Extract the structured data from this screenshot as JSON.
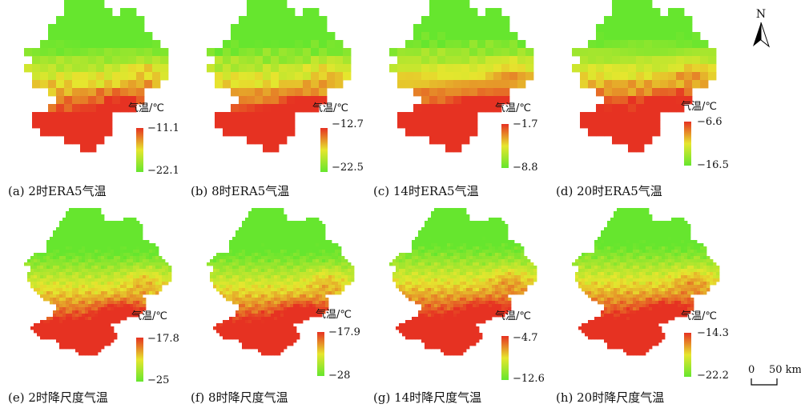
{
  "north_label": "N",
  "scale_bar": {
    "zero": "0",
    "distance": "50 km"
  },
  "colors": {
    "cold": "#66e62e",
    "mid": "#e6e62e",
    "warm": "#e63222"
  },
  "legend_unit": "气温/℃",
  "panels": [
    {
      "id": "a",
      "caption": "(a) 2时ERA5气温",
      "unit": "气温/℃",
      "max": "−11.1",
      "min": "−22.1",
      "style": "pixel",
      "hour": 2
    },
    {
      "id": "b",
      "caption": "(b) 8时ERA5气温",
      "unit": "气温/℃",
      "max": "−12.7",
      "min": "−22.5",
      "style": "pixel",
      "hour": 8
    },
    {
      "id": "c",
      "caption": "(c) 14时ERA5气温",
      "unit": "气温/℃",
      "max": "−1.7",
      "min": "−8.8",
      "style": "pixel",
      "hour": 14
    },
    {
      "id": "d",
      "caption": "(d) 20时ERA5气温",
      "unit": "气温/℃",
      "max": "−6.6",
      "min": "−16.5",
      "style": "pixel",
      "hour": 20
    },
    {
      "id": "e",
      "caption": "(e) 2时降尺度气温",
      "unit": "气温/℃",
      "max": "−17.8",
      "min": "−25",
      "style": "smooth",
      "hour": 2
    },
    {
      "id": "f",
      "caption": "(f) 8时降尺度气温",
      "unit": "气温/℃",
      "max": "−17.9",
      "min": "−28",
      "style": "smooth",
      "hour": 8
    },
    {
      "id": "g",
      "caption": "(g) 14时降尺度气温",
      "unit": "气温/℃",
      "max": "−4.7",
      "min": "−12.6",
      "style": "smooth",
      "hour": 14
    },
    {
      "id": "h",
      "caption": "(h) 20时降尺度气温",
      "unit": "气温/℃",
      "max": "−14.3",
      "min": "−22.2",
      "style": "smooth",
      "hour": 20
    }
  ]
}
